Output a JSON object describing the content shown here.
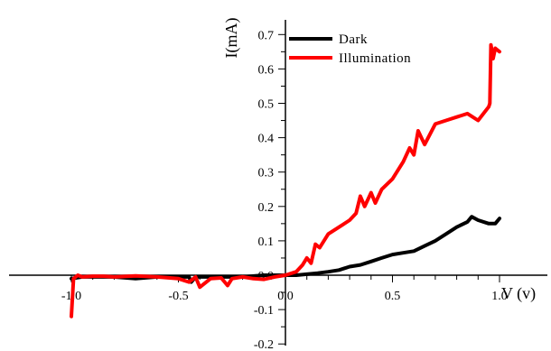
{
  "chart_data": {
    "type": "line",
    "xlabel": "V (v)",
    "ylabel": "I(mA)",
    "xlim": [
      -1.0,
      1.0
    ],
    "ylim": [
      -0.2,
      0.7
    ],
    "x_ticks": [
      "-1.0",
      "-0.5",
      "0.0",
      "0.5",
      "1.0"
    ],
    "y_ticks": [
      "-0.2",
      "-0.1",
      "0.0",
      "0.1",
      "0.2",
      "0.3",
      "0.4",
      "0.5",
      "0.6",
      "0.7"
    ],
    "legend_position": "top-left",
    "grid": false,
    "series": [
      {
        "name": "Dark",
        "color": "#000000",
        "x": [
          -1.0,
          -0.95,
          -0.9,
          -0.8,
          -0.7,
          -0.6,
          -0.5,
          -0.45,
          -0.44,
          -0.42,
          -0.4,
          -0.3,
          -0.2,
          -0.1,
          0.0,
          0.05,
          0.1,
          0.15,
          0.2,
          0.25,
          0.3,
          0.35,
          0.4,
          0.45,
          0.5,
          0.55,
          0.6,
          0.65,
          0.7,
          0.75,
          0.8,
          0.85,
          0.87,
          0.9,
          0.95,
          0.98,
          1.0
        ],
        "y": [
          -0.01,
          -0.005,
          -0.005,
          -0.005,
          -0.01,
          -0.005,
          -0.005,
          -0.005,
          -0.02,
          -0.005,
          -0.005,
          -0.005,
          -0.005,
          0.0,
          0.0,
          0.0,
          0.003,
          0.006,
          0.01,
          0.015,
          0.025,
          0.03,
          0.04,
          0.05,
          0.06,
          0.065,
          0.07,
          0.085,
          0.1,
          0.12,
          0.14,
          0.155,
          0.17,
          0.16,
          0.15,
          0.15,
          0.165
        ]
      },
      {
        "name": "Illumination",
        "color": "#ff0000",
        "x": [
          -1.0,
          -1.0,
          -0.99,
          -0.97,
          -0.95,
          -0.9,
          -0.85,
          -0.8,
          -0.7,
          -0.6,
          -0.5,
          -0.45,
          -0.42,
          -0.4,
          -0.35,
          -0.3,
          -0.27,
          -0.25,
          -0.2,
          -0.15,
          -0.1,
          -0.05,
          0.0,
          0.05,
          0.08,
          0.1,
          0.12,
          0.14,
          0.16,
          0.2,
          0.25,
          0.3,
          0.33,
          0.35,
          0.37,
          0.4,
          0.42,
          0.45,
          0.5,
          0.55,
          0.58,
          0.6,
          0.62,
          0.65,
          0.7,
          0.75,
          0.8,
          0.85,
          0.9,
          0.95,
          0.955,
          0.96,
          0.97,
          0.98,
          1.0
        ],
        "y": [
          -0.12,
          -0.12,
          -0.01,
          0.0,
          -0.005,
          -0.003,
          -0.003,
          -0.005,
          -0.002,
          -0.005,
          -0.01,
          -0.02,
          -0.005,
          -0.035,
          -0.01,
          -0.008,
          -0.03,
          -0.01,
          -0.005,
          -0.01,
          -0.012,
          -0.005,
          0.0,
          0.01,
          0.03,
          0.05,
          0.035,
          0.09,
          0.08,
          0.12,
          0.14,
          0.16,
          0.18,
          0.23,
          0.2,
          0.24,
          0.21,
          0.25,
          0.28,
          0.33,
          0.37,
          0.35,
          0.42,
          0.38,
          0.44,
          0.45,
          0.46,
          0.47,
          0.45,
          0.49,
          0.5,
          0.67,
          0.63,
          0.66,
          0.65
        ]
      }
    ]
  }
}
